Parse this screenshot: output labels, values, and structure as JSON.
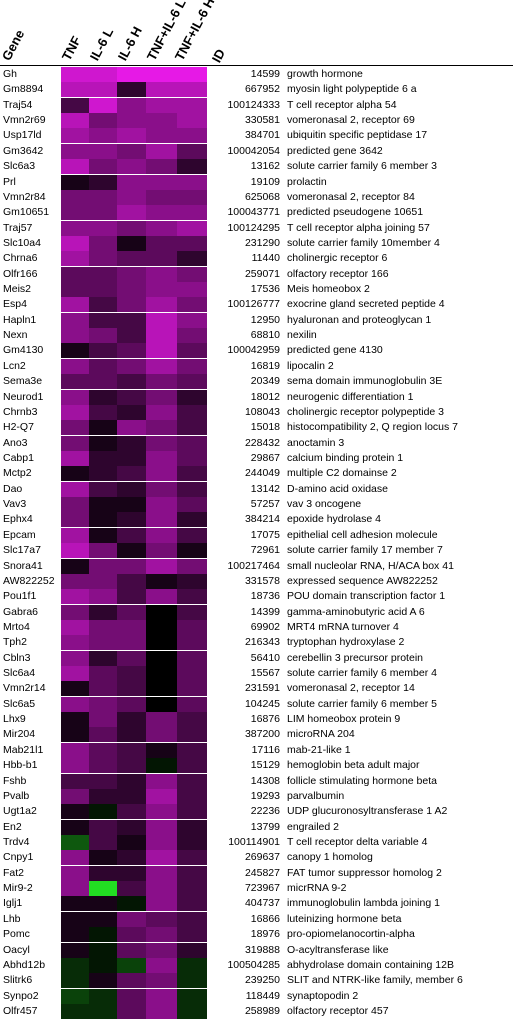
{
  "chart_data": {
    "type": "heatmap",
    "columns": [
      "Gene",
      "TNF",
      "IL-6 L",
      "IL-6 H",
      "TNF+IL-6 L",
      "TNF+IL-6 H",
      "ID"
    ],
    "conditions": [
      "TNF",
      "IL-6 L",
      "IL-6 H",
      "TNF+IL-6 L",
      "TNF+IL-6 H"
    ],
    "colors": {
      "high": "#e619e6",
      "zero": "#000000",
      "low": "#22dd22"
    },
    "rows": [
      {
        "gene": "Gh",
        "id": "14599",
        "description": "growth hormone",
        "values": [
          0.9,
          0.9,
          1.0,
          1.0,
          1.0
        ]
      },
      {
        "gene": "Gm8894",
        "id": "667952",
        "description": "myosin light polypeptide 6 a",
        "values": [
          0.8,
          0.8,
          0.2,
          0.8,
          0.8
        ]
      },
      {
        "gene": "Traj54",
        "id": "100124333",
        "description": "T cell receptor alpha 54",
        "values": [
          0.3,
          0.9,
          0.6,
          0.7,
          0.7
        ]
      },
      {
        "gene": "Vmn2r69",
        "id": "330581",
        "description": "vomeronasal 2, receptor 69",
        "values": [
          0.8,
          0.5,
          0.6,
          0.6,
          0.7
        ]
      },
      {
        "gene": "Usp17ld",
        "id": "384701",
        "description": "ubiquitin specific peptidase 17",
        "values": [
          0.7,
          0.6,
          0.7,
          0.6,
          0.6
        ]
      },
      {
        "gene": "Gm3642",
        "id": "100042054",
        "description": "predicted gene 3642",
        "values": [
          0.6,
          0.6,
          0.5,
          0.7,
          0.4
        ]
      },
      {
        "gene": "Slc6a3",
        "id": "13162",
        "description": "solute carrier family 6 member 3",
        "values": [
          0.8,
          0.5,
          0.6,
          0.5,
          0.2
        ]
      },
      {
        "gene": "Prl",
        "id": "19109",
        "description": "prolactin",
        "values": [
          0.1,
          0.2,
          0.6,
          0.6,
          0.6
        ]
      },
      {
        "gene": "Vmn2r84",
        "id": "625068",
        "description": "vomeronasal 2, receptor 84",
        "values": [
          0.5,
          0.5,
          0.6,
          0.5,
          0.5
        ]
      },
      {
        "gene": "Gm10651",
        "id": "100043771",
        "description": "predicted pseudogene 10651",
        "values": [
          0.5,
          0.5,
          0.7,
          0.6,
          0.6
        ]
      },
      {
        "gene": "Traj57",
        "id": "100124295",
        "description": "T cell receptor alpha joining 57",
        "values": [
          0.6,
          0.6,
          0.5,
          0.6,
          0.7
        ]
      },
      {
        "gene": "Slc10a4",
        "id": "231290",
        "description": "solute carrier family 10member 4",
        "values": [
          0.8,
          0.5,
          0.1,
          0.4,
          0.4
        ]
      },
      {
        "gene": "Chrna6",
        "id": "11440",
        "description": "cholinergic receptor 6",
        "values": [
          0.7,
          0.5,
          0.4,
          0.4,
          0.2
        ]
      },
      {
        "gene": "Olfr166",
        "id": "259071",
        "description": "olfactory receptor 166",
        "values": [
          0.4,
          0.4,
          0.5,
          0.6,
          0.5
        ]
      },
      {
        "gene": "Meis2",
        "id": "17536",
        "description": "Meis homeobox 2",
        "values": [
          0.4,
          0.4,
          0.5,
          0.6,
          0.6
        ]
      },
      {
        "gene": "Esp4",
        "id": "100126777",
        "description": "exocrine gland secreted peptide 4",
        "values": [
          0.7,
          0.3,
          0.5,
          0.7,
          0.5
        ]
      },
      {
        "gene": "Hapln1",
        "id": "12950",
        "description": "hyaluronan and proteoglycan 1",
        "values": [
          0.6,
          0.3,
          0.3,
          0.8,
          0.6
        ]
      },
      {
        "gene": "Nexn",
        "id": "68810",
        "description": "nexilin",
        "values": [
          0.6,
          0.5,
          0.3,
          0.8,
          0.5
        ]
      },
      {
        "gene": "Gm4130",
        "id": "100042959",
        "description": "predicted gene 4130",
        "values": [
          0.1,
          0.3,
          0.4,
          0.8,
          0.4
        ]
      },
      {
        "gene": "Lcn2",
        "id": "16819",
        "description": "lipocalin 2",
        "values": [
          0.6,
          0.4,
          0.5,
          0.7,
          0.5
        ]
      },
      {
        "gene": "Sema3e",
        "id": "20349",
        "description": "sema domain immunoglobulin 3E",
        "values": [
          0.4,
          0.4,
          0.3,
          0.5,
          0.4
        ]
      },
      {
        "gene": "Neurod1",
        "id": "18012",
        "description": "neurogenic differentiation 1",
        "values": [
          0.6,
          0.2,
          0.3,
          0.5,
          0.2
        ]
      },
      {
        "gene": "Chrnb3",
        "id": "108043",
        "description": "cholinergic receptor  polypeptide 3",
        "values": [
          0.7,
          0.3,
          0.2,
          0.6,
          0.3
        ]
      },
      {
        "gene": "H2-Q7",
        "id": "15018",
        "description": "histocompatibility 2, Q region locus 7",
        "values": [
          0.5,
          0.1,
          0.6,
          0.5,
          0.3
        ]
      },
      {
        "gene": "Ano3",
        "id": "228432",
        "description": "anoctamin 3",
        "values": [
          0.5,
          0.1,
          0.2,
          0.5,
          0.4
        ]
      },
      {
        "gene": "Cabp1",
        "id": "29867",
        "description": "calcium binding protein 1",
        "values": [
          0.7,
          0.2,
          0.2,
          0.6,
          0.4
        ]
      },
      {
        "gene": "Mctp2",
        "id": "244049",
        "description": "multiple C2 domainse 2",
        "values": [
          0.1,
          0.2,
          0.3,
          0.6,
          0.3
        ]
      },
      {
        "gene": "Dao",
        "id": "13142",
        "description": "D-amino acid oxidase",
        "values": [
          0.7,
          0.3,
          0.2,
          0.5,
          0.3
        ]
      },
      {
        "gene": "Vav3",
        "id": "57257",
        "description": "vav 3 oncogene",
        "values": [
          0.5,
          0.1,
          0.1,
          0.6,
          0.4
        ]
      },
      {
        "gene": "Ephx4",
        "id": "384214",
        "description": "epoxide hydrolase 4",
        "values": [
          0.5,
          0.1,
          0.2,
          0.6,
          0.2
        ]
      },
      {
        "gene": "Epcam",
        "id": "17075",
        "description": "epithelial cell adhesion molecule",
        "values": [
          0.7,
          0.1,
          0.3,
          0.6,
          0.3
        ]
      },
      {
        "gene": "Slc17a7",
        "id": "72961",
        "description": "solute carrier family 17  member 7",
        "values": [
          0.8,
          0.5,
          0.1,
          0.5,
          0.1
        ]
      },
      {
        "gene": "Snora41",
        "id": "100217464",
        "description": "small nucleolar RNA, H/ACA box 41",
        "values": [
          0.1,
          0.5,
          0.5,
          0.7,
          0.5
        ]
      },
      {
        "gene": "AW822252",
        "id": "331578",
        "description": "expressed sequence AW822252",
        "values": [
          0.5,
          0.5,
          0.3,
          0.1,
          0.2
        ]
      },
      {
        "gene": "Pou1f1",
        "id": "18736",
        "description": "POU domain transcription factor 1",
        "values": [
          0.7,
          0.6,
          0.3,
          0.6,
          0.3
        ]
      },
      {
        "gene": "Gabra6",
        "id": "14399",
        "description": "gamma-aminobutyric acid A 6",
        "values": [
          0.5,
          0.2,
          0.4,
          0.0,
          0.3
        ]
      },
      {
        "gene": "Mrto4",
        "id": "69902",
        "description": "MRT4  mRNA turnover 4",
        "values": [
          0.7,
          0.5,
          0.5,
          0.0,
          0.4
        ]
      },
      {
        "gene": "Tph2",
        "id": "216343",
        "description": "tryptophan hydroxylase 2",
        "values": [
          0.6,
          0.5,
          0.5,
          0.0,
          0.4
        ]
      },
      {
        "gene": "Cbln3",
        "id": "56410",
        "description": "cerebellin 3 precursor protein",
        "values": [
          0.6,
          0.2,
          0.4,
          0.0,
          0.4
        ]
      },
      {
        "gene": "Slc6a4",
        "id": "15567",
        "description": "solute carrier family 6 member 4",
        "values": [
          0.7,
          0.4,
          0.3,
          0.0,
          0.4
        ]
      },
      {
        "gene": "Vmn2r14",
        "id": "231591",
        "description": "vomeronasal 2, receptor 14",
        "values": [
          0.1,
          0.4,
          0.3,
          0.0,
          0.4
        ]
      },
      {
        "gene": "Slc6a5",
        "id": "104245",
        "description": "solute carrier family 6 member 5",
        "values": [
          0.6,
          0.5,
          0.4,
          0.0,
          0.4
        ]
      },
      {
        "gene": "Lhx9",
        "id": "16876",
        "description": "LIM homeobox protein 9",
        "values": [
          0.1,
          0.5,
          0.2,
          0.5,
          0.3
        ]
      },
      {
        "gene": "Mir204",
        "id": "387200",
        "description": "microRNA 204",
        "values": [
          0.1,
          0.4,
          0.2,
          0.5,
          0.3
        ]
      },
      {
        "gene": "Mab21l1",
        "id": "17116",
        "description": "mab-21-like 1",
        "values": [
          0.6,
          0.4,
          0.3,
          0.1,
          0.3
        ]
      },
      {
        "gene": "Hbb-b1",
        "id": "15129",
        "description": "hemoglobin beta adult major",
        "values": [
          0.6,
          0.4,
          0.3,
          -0.1,
          0.3
        ]
      },
      {
        "gene": "Fshb",
        "id": "14308",
        "description": "follicle stimulating hormone beta",
        "values": [
          0.3,
          0.3,
          0.2,
          0.6,
          0.3
        ]
      },
      {
        "gene": "Pvalb",
        "id": "19293",
        "description": "parvalbumin",
        "values": [
          0.5,
          0.2,
          0.2,
          0.7,
          0.3
        ]
      },
      {
        "gene": "Ugt1a2",
        "id": "22236",
        "description": "UDP glucuronosyltransferase 1  A2",
        "values": [
          0.1,
          -0.1,
          0.3,
          0.6,
          0.3
        ]
      },
      {
        "gene": "En2",
        "id": "13799",
        "description": "engrailed 2",
        "values": [
          0.1,
          0.3,
          0.2,
          0.6,
          0.2
        ]
      },
      {
        "gene": "Trdv4",
        "id": "100114901",
        "description": "T cell receptor delta variable 4",
        "values": [
          -0.4,
          0.3,
          0.1,
          0.6,
          0.2
        ]
      },
      {
        "gene": "Cnpy1",
        "id": "269637",
        "description": "canopy 1 homolog",
        "values": [
          0.6,
          0.1,
          0.2,
          0.7,
          0.3
        ]
      },
      {
        "gene": "Fat2",
        "id": "245827",
        "description": "FAT tumor suppressor homolog 2",
        "values": [
          0.6,
          0.2,
          0.2,
          0.6,
          0.3
        ]
      },
      {
        "gene": "Mir9-2",
        "id": "723967",
        "description": "micrRNA 9-2",
        "values": [
          0.6,
          -1.0,
          0.3,
          0.6,
          0.3
        ]
      },
      {
        "gene": "Iglj1",
        "id": "404737",
        "description": "immunoglobulin lambda joining 1",
        "values": [
          0.1,
          0.1,
          -0.1,
          0.6,
          0.3
        ]
      },
      {
        "gene": "Lhb",
        "id": "16866",
        "description": "luteinizing hormone beta",
        "values": [
          0.1,
          0.1,
          0.5,
          0.4,
          0.3
        ]
      },
      {
        "gene": "Pomc",
        "id": "18976",
        "description": "pro-opiomelanocortin-alpha",
        "values": [
          0.1,
          -0.1,
          0.4,
          0.5,
          0.3
        ]
      },
      {
        "gene": "Oacyl",
        "id": "319888",
        "description": "O-acyltransferase like",
        "values": [
          0.1,
          -0.1,
          0.4,
          0.5,
          0.2
        ]
      },
      {
        "gene": "Abhd12b",
        "id": "100504285",
        "description": "abhydrolase domain containing 12B",
        "values": [
          -0.2,
          -0.1,
          -0.3,
          0.6,
          -0.2
        ]
      },
      {
        "gene": "Slitrk6",
        "id": "239250",
        "description": "SLIT and NTRK-like family, member 6",
        "values": [
          -0.2,
          0.1,
          0.4,
          0.5,
          -0.2
        ]
      },
      {
        "gene": "Synpo2",
        "id": "118449",
        "description": "synaptopodin 2",
        "values": [
          -0.3,
          -0.2,
          0.4,
          0.6,
          -0.2
        ]
      },
      {
        "gene": "Olfr457",
        "id": "258989",
        "description": "olfactory receptor 457",
        "values": [
          -0.2,
          -0.2,
          0.4,
          0.6,
          -0.2
        ]
      }
    ]
  }
}
